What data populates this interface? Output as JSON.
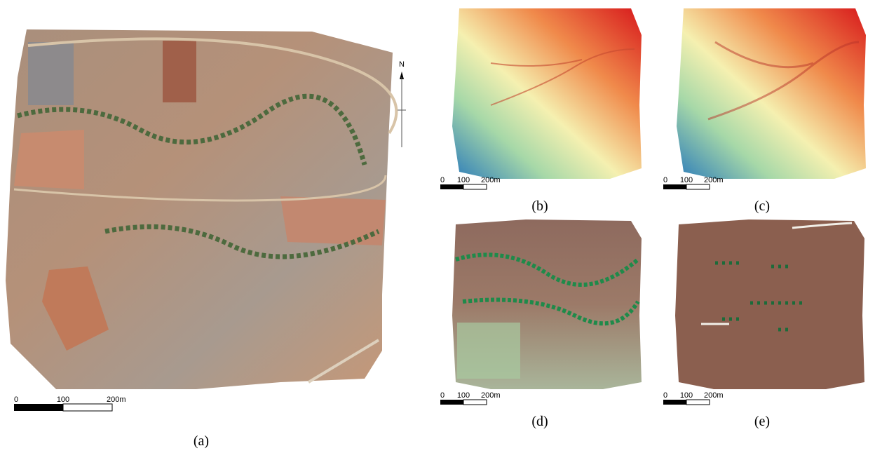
{
  "north": "N",
  "panels": [
    {
      "caption": "(a)",
      "scale": [
        "0",
        "100",
        "200m"
      ]
    },
    {
      "caption": "(b)",
      "scale": [
        "0",
        "100",
        "200m"
      ]
    },
    {
      "caption": "(c)",
      "scale": [
        "0",
        "100",
        "200m"
      ]
    },
    {
      "caption": "(d)",
      "scale": [
        "0",
        "100",
        "200m"
      ]
    },
    {
      "caption": "(e)",
      "scale": [
        "0",
        "100",
        "200m"
      ]
    }
  ]
}
